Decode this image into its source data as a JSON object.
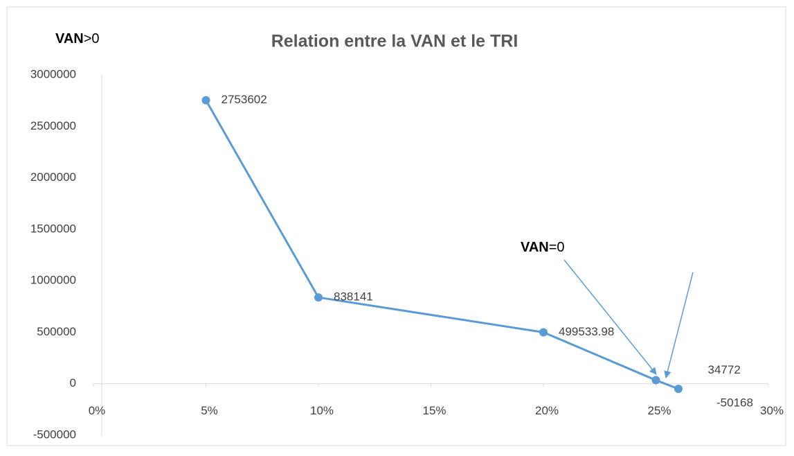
{
  "chart_data": {
    "type": "line",
    "title": "Relation entre la VAN  et le TRI",
    "annotations": [
      {
        "bold": "VAN",
        "rest": ">0"
      },
      {
        "bold": "VAN",
        "rest": "=0"
      }
    ],
    "x": [
      5,
      10,
      20,
      25,
      26
    ],
    "series": [
      {
        "name": "VAN",
        "color": "#5b9bd5",
        "values": [
          2753602,
          838141,
          499533.98,
          34772,
          -50168
        ]
      }
    ],
    "xlim": [
      0,
      30
    ],
    "xticks": [
      {
        "value": 0,
        "label": "0%"
      },
      {
        "value": 5,
        "label": "5%"
      },
      {
        "value": 10,
        "label": "10%"
      },
      {
        "value": 15,
        "label": "15%"
      },
      {
        "value": 20,
        "label": "20%"
      },
      {
        "value": 25,
        "label": "25%"
      },
      {
        "value": 30,
        "label": "30%"
      }
    ],
    "ylim": [
      -500000,
      3000000
    ],
    "yticks": [
      -500000,
      0,
      500000,
      1000000,
      1500000,
      2000000,
      2500000,
      3000000
    ],
    "grid": false
  }
}
